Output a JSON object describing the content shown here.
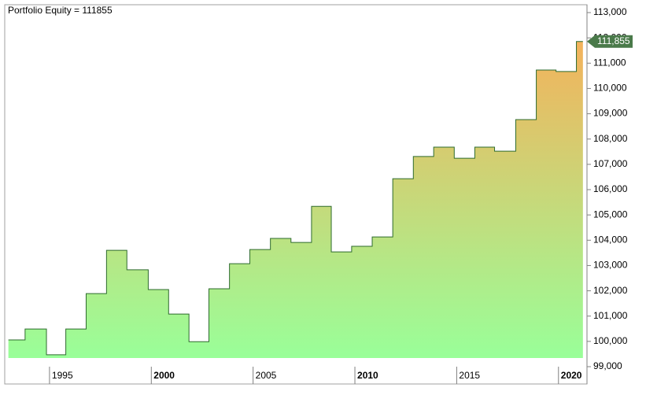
{
  "chart_data": {
    "type": "step-area",
    "title": "Portfolio Equity = 111855",
    "x": [
      1992.98,
      1993.8,
      1994.85,
      1995.8,
      1996.8,
      1997.8,
      1998.8,
      1999.85,
      2000.85,
      2001.85,
      2002.83,
      2003.84,
      2004.84,
      2005.85,
      2006.86,
      2007.87,
      2008.84,
      2009.84,
      2010.85,
      2011.86,
      2012.87,
      2013.87,
      2014.88,
      2015.89,
      2016.86,
      2017.9,
      2018.91,
      2019.88,
      2020.88,
      2021.2
    ],
    "series": [
      {
        "name": "Portfolio Equity",
        "color": "#2e6b2e",
        "values": [
          100057,
          100490,
          99470,
          100490,
          101890,
          103600,
          102830,
          102050,
          101080,
          99990,
          102080,
          103070,
          103630,
          104070,
          103910,
          105340,
          103540,
          103760,
          104130,
          106430,
          107310,
          107680,
          107240,
          107680,
          107520,
          108770,
          110730,
          110670,
          111855,
          111855
        ]
      }
    ],
    "last_value": {
      "value": 111855,
      "label": "111,855"
    },
    "fill_gradient": [
      "#99ff99",
      "#f4b25b"
    ],
    "xlim": [
      1992.8,
      2021.4
    ],
    "xticks": [
      1995,
      2000,
      2005,
      2010,
      2015,
      2020
    ],
    "ylim": [
      98316,
      113311
    ],
    "yticks": [
      {
        "value": 99000,
        "label": "99,000"
      },
      {
        "value": 100000,
        "label": "100,000"
      },
      {
        "value": 101000,
        "label": "101,000"
      },
      {
        "value": 102000,
        "label": "102,000"
      },
      {
        "value": 103000,
        "label": "103,000"
      },
      {
        "value": 104000,
        "label": "104,000"
      },
      {
        "value": 105000,
        "label": "105,000"
      },
      {
        "value": 106000,
        "label": "106,000"
      },
      {
        "value": 107000,
        "label": "107,000"
      },
      {
        "value": 108000,
        "label": "108,000"
      },
      {
        "value": 109000,
        "label": "109,000"
      },
      {
        "value": 110000,
        "label": "110,000"
      },
      {
        "value": 111000,
        "label": "111,000"
      },
      {
        "value": 112000,
        "label": "112,000"
      },
      {
        "value": 113000,
        "label": "113,000"
      }
    ]
  }
}
